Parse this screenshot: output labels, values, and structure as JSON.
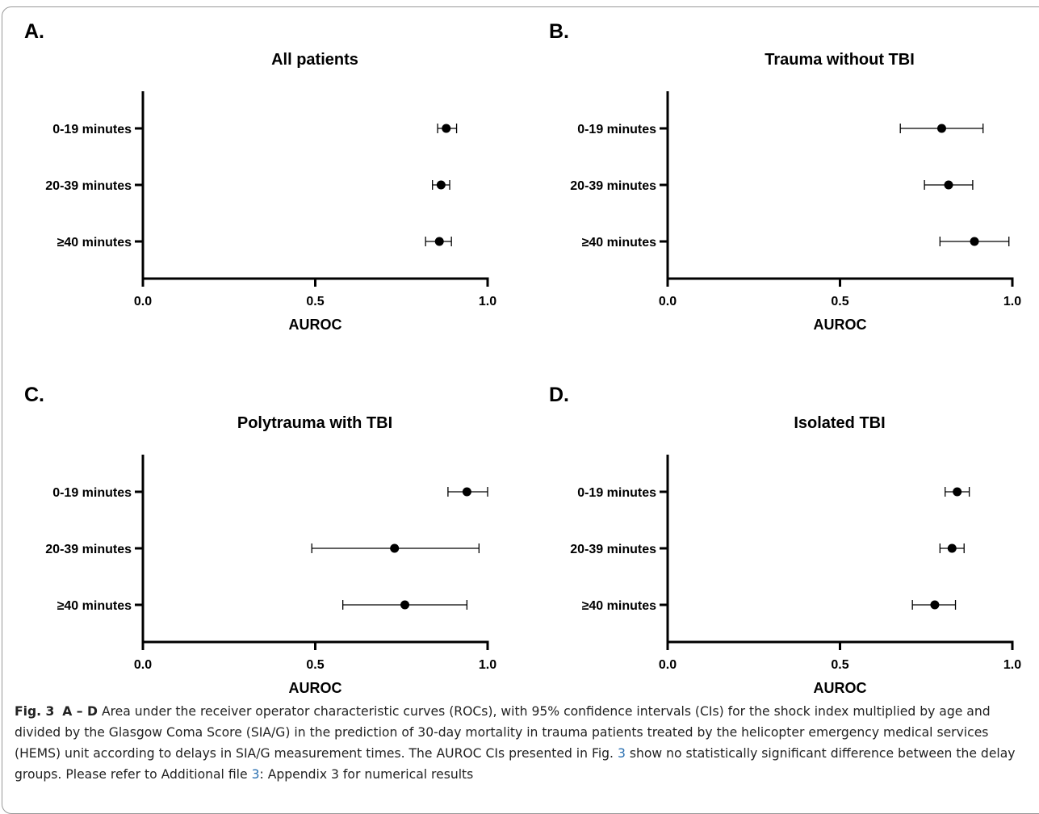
{
  "chart_data": [
    {
      "type": "forest",
      "panel": "A.",
      "title": "All patients",
      "xlabel": "AUROC",
      "xlim": [
        0,
        1
      ],
      "xticks": [
        "0.0",
        "0.5",
        "1.0"
      ],
      "categories": [
        "0-19 minutes",
        "20-39 minutes",
        "≥40 minutes"
      ],
      "estimates": [
        0.88,
        0.865,
        0.86
      ],
      "ci_lower": [
        0.855,
        0.84,
        0.82
      ],
      "ci_upper": [
        0.91,
        0.89,
        0.895
      ]
    },
    {
      "type": "forest",
      "panel": "B.",
      "title": "Trauma without TBI",
      "xlabel": "AUROC",
      "xlim": [
        0,
        1
      ],
      "xticks": [
        "0.0",
        "0.5",
        "1.0"
      ],
      "categories": [
        "0-19 minutes",
        "20-39 minutes",
        "≥40 minutes"
      ],
      "estimates": [
        0.795,
        0.815,
        0.89
      ],
      "ci_lower": [
        0.675,
        0.745,
        0.79
      ],
      "ci_upper": [
        0.915,
        0.885,
        0.99
      ]
    },
    {
      "type": "forest",
      "panel": "C.",
      "title": "Polytrauma with TBI",
      "xlabel": "AUROC",
      "xlim": [
        0,
        1
      ],
      "xticks": [
        "0.0",
        "0.5",
        "1.0"
      ],
      "categories": [
        "0-19 minutes",
        "20-39 minutes",
        "≥40 minutes"
      ],
      "estimates": [
        0.94,
        0.73,
        0.76
      ],
      "ci_lower": [
        0.885,
        0.49,
        0.58
      ],
      "ci_upper": [
        1.0,
        0.975,
        0.94
      ]
    },
    {
      "type": "forest",
      "panel": "D.",
      "title": "Isolated TBI",
      "xlabel": "AUROC",
      "xlim": [
        0,
        1
      ],
      "xticks": [
        "0.0",
        "0.5",
        "1.0"
      ],
      "categories": [
        "0-19 minutes",
        "20-39 minutes",
        "≥40 minutes"
      ],
      "estimates": [
        0.84,
        0.825,
        0.775
      ],
      "ci_lower": [
        0.805,
        0.79,
        0.71
      ],
      "ci_upper": [
        0.875,
        0.86,
        0.835
      ]
    }
  ],
  "caption": {
    "label": "Fig. 3",
    "panels_ref": "A – D",
    "text_1": "Area under the receiver operator characteristic curves (ROCs), with 95% confidence intervals (CIs) for the shock index multiplied by age and divided by the Glasgow Coma Score (SIA/G) in the prediction of 30-day mortality in trauma patients treated by the helicopter emergency medical services (HEMS) unit according to delays in SIA/G measurement times. The AUROC CIs presented in Fig. ",
    "link_1": "3",
    "text_2": " show no statistically significant difference between the delay groups. Please refer to Additional file ",
    "link_2": "3",
    "text_3": ": Appendix 3 for numerical results"
  }
}
